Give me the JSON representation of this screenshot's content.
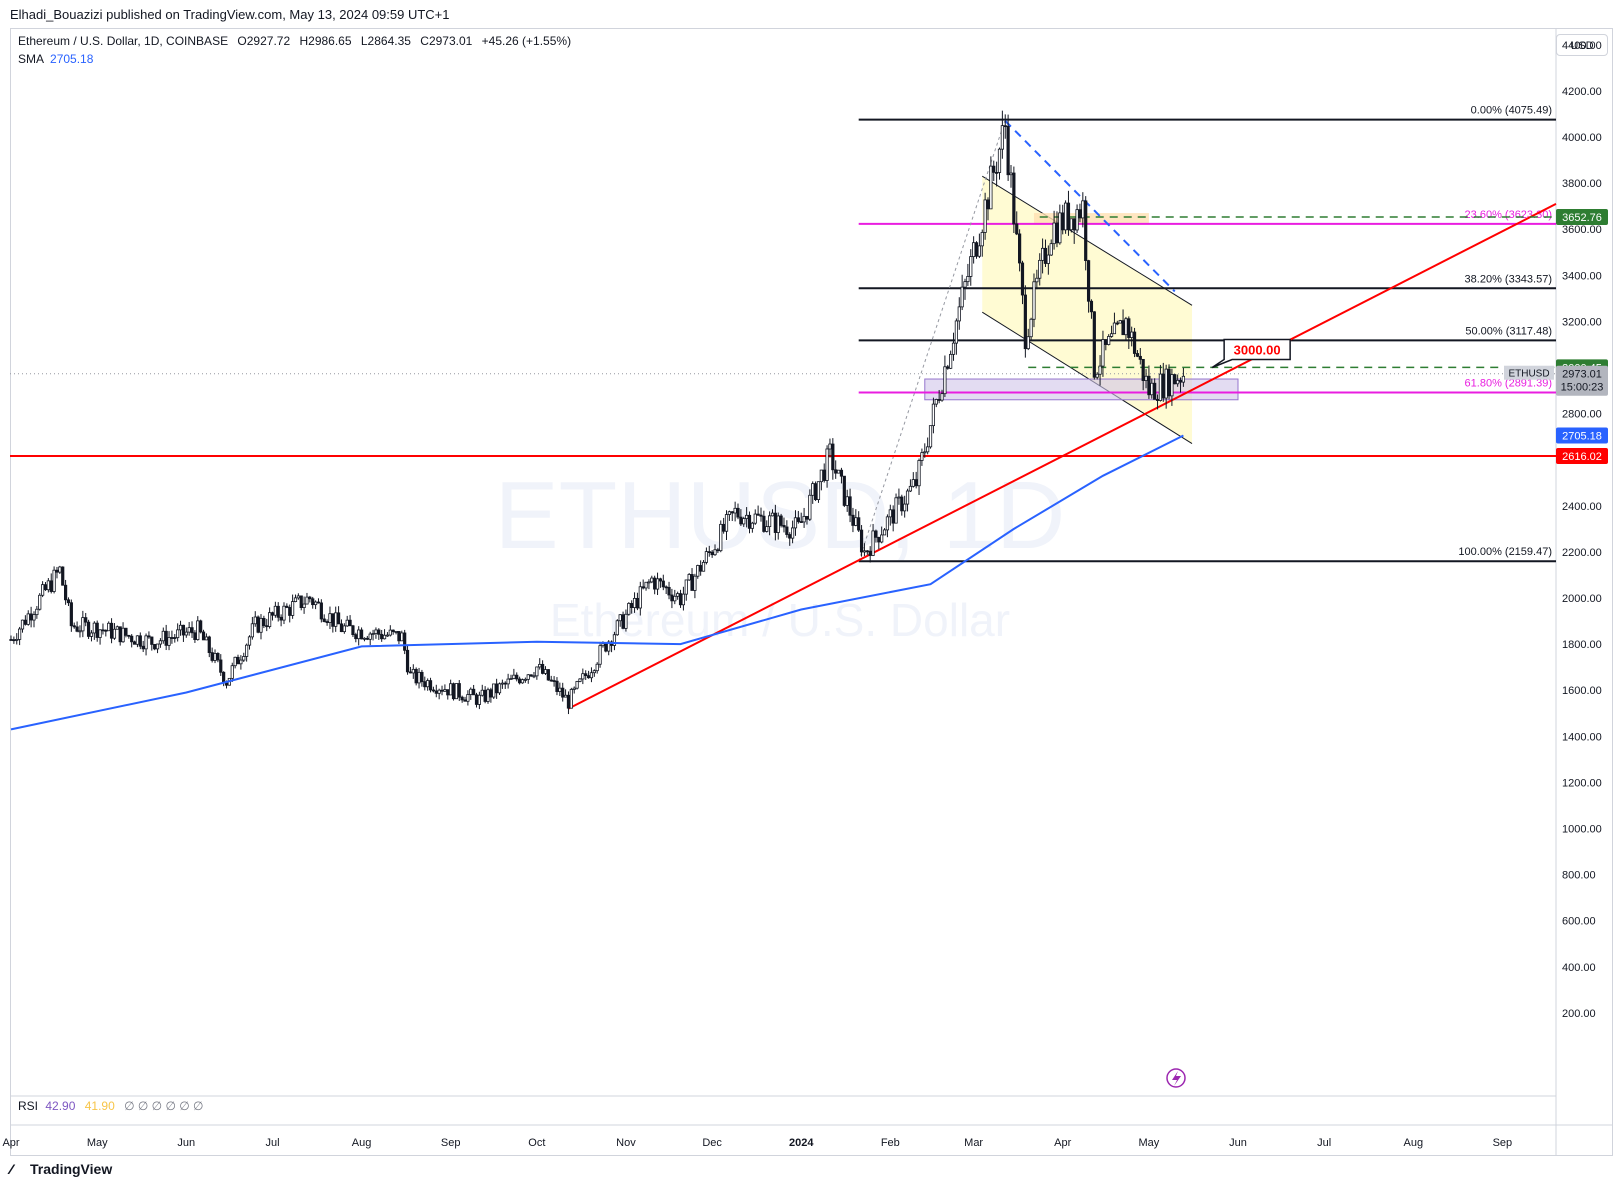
{
  "publisher": "Elhadi_Bouazizi published on TradingView.com, May 13, 2024 09:59 UTC+1",
  "header": {
    "symbol": "Ethereum / U.S. Dollar, 1D, COINBASE",
    "open": "O2927.72",
    "high": "H2986.65",
    "low": "L2864.35",
    "close": "C2973.01",
    "change": "+45.26 (+1.55%)",
    "sma_label": "SMA",
    "sma_value": "2705.18"
  },
  "currency_button": "USD",
  "watermark": {
    "line1": "ETHUSD, 1D",
    "line2": "Ethereum / U.S. Dollar"
  },
  "rsi": {
    "label": "RSI",
    "v1": "42.90",
    "v2": "41.90",
    "empty": "∅ ∅ ∅ ∅ ∅ ∅"
  },
  "brand": "TradingView",
  "colors": {
    "up": "#131722",
    "sma": "#2962ff",
    "trend": "#ff0000",
    "fib_magenta": "#e91ee0",
    "green": "#2e7d32",
    "channel": "#fff9c4"
  },
  "chart_data": {
    "type": "candlestick",
    "title": "Ethereum / U.S. Dollar, 1D, COINBASE",
    "xlabel": "",
    "ylabel": "",
    "y_ticks": [
      200,
      400,
      600,
      800,
      1000,
      1200,
      1400,
      1600,
      1800,
      2000,
      2200,
      2400,
      2600,
      2800,
      3000,
      3200,
      3400,
      3600,
      3800,
      4000,
      4200,
      4400
    ],
    "ylim": [
      0,
      4600
    ],
    "x_ticks": [
      "Apr",
      "May",
      "Jun",
      "Jul",
      "Aug",
      "Sep",
      "Oct",
      "Nov",
      "Dec",
      "2024",
      "Feb",
      "Mar",
      "Apr",
      "May",
      "Jun",
      "Jul",
      "Aug",
      "Sep"
    ],
    "price_path": [
      [
        "2023-04-01",
        1820
      ],
      [
        "2023-04-18",
        2120
      ],
      [
        "2023-04-22",
        1880
      ],
      [
        "2023-05-01",
        1870
      ],
      [
        "2023-05-20",
        1810
      ],
      [
        "2023-06-05",
        1860
      ],
      [
        "2023-06-15",
        1640
      ],
      [
        "2023-06-25",
        1880
      ],
      [
        "2023-07-14",
        2000
      ],
      [
        "2023-07-25",
        1870
      ],
      [
        "2023-08-15",
        1830
      ],
      [
        "2023-08-18",
        1660
      ],
      [
        "2023-09-11",
        1560
      ],
      [
        "2023-10-01",
        1700
      ],
      [
        "2023-10-12",
        1550
      ],
      [
        "2023-10-25",
        1800
      ],
      [
        "2023-11-10",
        2080
      ],
      [
        "2023-11-20",
        2000
      ],
      [
        "2023-12-09",
        2370
      ],
      [
        "2023-12-31",
        2300
      ],
      [
        "2024-01-11",
        2620
      ],
      [
        "2024-01-23",
        2200
      ],
      [
        "2024-02-10",
        2500
      ],
      [
        "2024-02-28",
        3400
      ],
      [
        "2024-03-12",
        4050
      ],
      [
        "2024-03-19",
        3150
      ],
      [
        "2024-03-28",
        3600
      ],
      [
        "2024-04-08",
        3700
      ],
      [
        "2024-04-12",
        3000
      ],
      [
        "2024-04-23",
        3200
      ],
      [
        "2024-05-01",
        2900
      ],
      [
        "2024-05-13",
        2973
      ]
    ],
    "sma_path": [
      [
        "2023-04-01",
        1430
      ],
      [
        "2023-06-01",
        1590
      ],
      [
        "2023-08-01",
        1790
      ],
      [
        "2023-10-01",
        1810
      ],
      [
        "2023-11-20",
        1800
      ],
      [
        "2024-01-01",
        1950
      ],
      [
        "2024-02-15",
        2060
      ],
      [
        "2024-03-15",
        2300
      ],
      [
        "2024-04-15",
        2530
      ],
      [
        "2024-05-13",
        2705.18
      ]
    ],
    "fibonacci": [
      {
        "label": "0.00% (4075.49)",
        "price": 4075.49
      },
      {
        "label": "23.60% (3623.30)",
        "price": 3623.3
      },
      {
        "label": "38.20% (3343.57)",
        "price": 3343.57
      },
      {
        "label": "50.00% (3117.48)",
        "price": 3117.48
      },
      {
        "label": "61.80% (2891.39)",
        "price": 2891.39
      },
      {
        "label": "100.00% (2159.47)",
        "price": 2159.47
      }
    ],
    "price_labels": [
      {
        "text": "3652.76",
        "price": 3652.76,
        "color": "#2e7d32"
      },
      {
        "text": "3000.45",
        "price": 3000.45,
        "color": "#2e7d32"
      },
      {
        "text": "2705.18",
        "price": 2705.18,
        "color": "#2962ff"
      },
      {
        "text": "2616.02",
        "price": 2616.02,
        "color": "#ff0000"
      }
    ],
    "last_price": {
      "symbol": "ETHUSD",
      "price": "2973.01",
      "countdown": "15:00:23"
    },
    "callout": {
      "text": "3000.00",
      "price": 3000.0
    },
    "horizontal_support": 2616.02
  }
}
